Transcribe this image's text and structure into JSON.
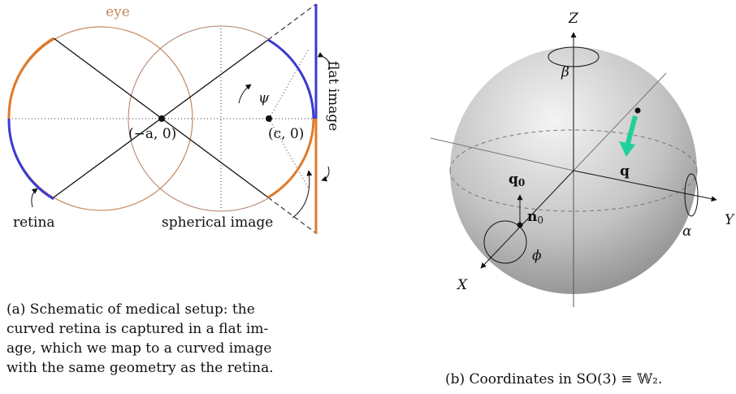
{
  "panel_a": {
    "eye_label": "eye",
    "angle_label": "ψ",
    "point_left": "(−a, 0)",
    "point_right": "(c, 0)",
    "flat_image_label": "flat image",
    "retina_label": "retina",
    "spherical_image_label": "spherical image",
    "caption_lines": [
      "(a) Schematic of medical setup: the",
      "curved retina is captured in a flat im-",
      "age, which we map to a curved image",
      "with the same geometry as the retina."
    ]
  },
  "panel_b": {
    "z_label": "Z",
    "beta_label": "β",
    "q_label": "q",
    "q0_label": {
      "base": "q",
      "sub": "0"
    },
    "n0_label": {
      "base": "n",
      "sub": "0"
    },
    "y_label": "Y",
    "alpha_label": "α",
    "x_label": "X",
    "phi_label": "ϕ",
    "caption": "(b) Coordinates in SO(3) ≡ 𝕎₂."
  }
}
